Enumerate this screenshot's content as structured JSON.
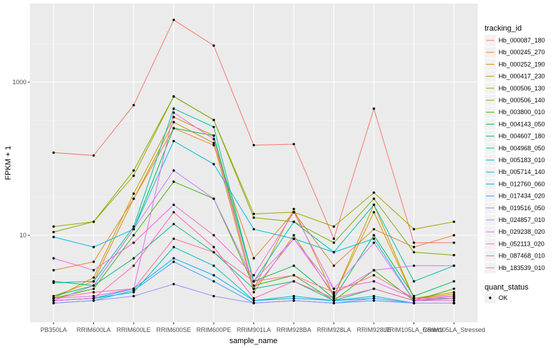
{
  "chart_data": {
    "type": "line",
    "title": "",
    "xlabel": "sample_name",
    "ylabel": "FPKM + 1",
    "log_scale_y": true,
    "y_ticks": [
      10,
      1000
    ],
    "y_tick_labels": [
      "10",
      "1000"
    ],
    "ylim": [
      1,
      7000
    ],
    "grid": true,
    "background": "#EBEBEB",
    "categories": [
      "PB350LA",
      "RRIM600LA",
      "RRIM600LE",
      "RRIM600SE",
      "RRIM600PE",
      "RRIM901LA",
      "RRIM928BA",
      "RRIM928LA",
      "RRIM928LE",
      "RRIM105LA_Control",
      "RRIM105LA_Stressed"
    ],
    "legend": {
      "title": "tracking_id",
      "placement": "right"
    },
    "status_legend": {
      "title": "quant_status",
      "entries": [
        "OK"
      ]
    },
    "series": [
      {
        "name": "Hb_000087_180",
        "color": "#F8766D",
        "values": [
          120,
          110,
          500,
          6500,
          3000,
          150,
          155,
          9,
          450,
          8,
          8
        ]
      },
      {
        "name": "Hb_000245_270",
        "color": "#EA8331",
        "values": [
          3.5,
          4.5,
          30,
          250,
          150,
          5,
          20,
          4,
          12,
          7,
          10
        ]
      },
      {
        "name": "Hb_000252_190",
        "color": "#D89000",
        "values": [
          1.6,
          2.5,
          30,
          300,
          160,
          1.8,
          10,
          1.6,
          20,
          1.5,
          1.8
        ]
      },
      {
        "name": "Hb_000417_230",
        "color": "#C09B00",
        "values": [
          1.5,
          2.8,
          35,
          350,
          200,
          2,
          22,
          1.6,
          25,
          1.5,
          1.7
        ]
      },
      {
        "name": "Hb_000506_130",
        "color": "#A3A500",
        "values": [
          13,
          15,
          60,
          650,
          320,
          19,
          20,
          13,
          36,
          12,
          15
        ]
      },
      {
        "name": "Hb_000506_140",
        "color": "#7CAE00",
        "values": [
          11,
          15,
          70,
          650,
          320,
          17,
          15,
          8,
          30,
          6,
          5.5
        ]
      },
      {
        "name": "Hb_003800_010",
        "color": "#39B600",
        "values": [
          1.5,
          2,
          10,
          50,
          30,
          2.2,
          3,
          1.4,
          3.5,
          1.4,
          2
        ]
      },
      {
        "name": "Hb_004143_050",
        "color": "#00BB4E",
        "values": [
          1.6,
          2.2,
          12,
          250,
          200,
          2.5,
          4,
          1.5,
          10,
          1.6,
          2.5
        ]
      },
      {
        "name": "Hb_004607_180",
        "color": "#00BF7D",
        "values": [
          2.5,
          2.2,
          5,
          14,
          6,
          2,
          2.5,
          1.4,
          2,
          1.4,
          1.5
        ]
      },
      {
        "name": "Hb_004968_050",
        "color": "#00C1A3",
        "values": [
          2.4,
          2.5,
          13,
          450,
          260,
          2.5,
          15,
          6,
          25,
          2.5,
          4
        ]
      },
      {
        "name": "Hb_005183_010",
        "color": "#00BFC4",
        "values": [
          1.4,
          1.5,
          1.8,
          7,
          4,
          1.4,
          1.6,
          1.4,
          1.6,
          1.3,
          1.3
        ]
      },
      {
        "name": "Hb_005714_140",
        "color": "#00BAE0",
        "values": [
          9.5,
          7,
          12,
          170,
          85,
          12,
          9,
          6,
          9,
          1.4,
          1.5
        ]
      },
      {
        "name": "Hb_012760_060",
        "color": "#00B0F6",
        "values": [
          1.4,
          1.5,
          2,
          5,
          3,
          1.4,
          1.5,
          1.4,
          1.5,
          1.3,
          1.3
        ]
      },
      {
        "name": "Hb_017434_020",
        "color": "#35A2FF",
        "values": [
          1.3,
          1.4,
          1.9,
          4.5,
          2.5,
          1.3,
          1.4,
          1.3,
          1.4,
          1.3,
          1.3
        ]
      },
      {
        "name": "Hb_019516_050",
        "color": "#9590FF",
        "values": [
          1.3,
          1.4,
          1.6,
          2.3,
          1.6,
          1.3,
          1.4,
          1.3,
          1.5,
          1.3,
          1.3
        ]
      },
      {
        "name": "Hb_024857_010",
        "color": "#C77CFF",
        "values": [
          1.4,
          2.2,
          12,
          70,
          30,
          2.5,
          9,
          2,
          8,
          1.4,
          1.6
        ]
      },
      {
        "name": "Hb_029238_020",
        "color": "#E76BF3",
        "values": [
          1.5,
          1.6,
          2,
          400,
          180,
          2,
          9,
          1.7,
          3.5,
          4,
          4
        ]
      },
      {
        "name": "Hb_052113_020",
        "color": "#FA62DB",
        "values": [
          5,
          3.5,
          8,
          25,
          10,
          3,
          20,
          2,
          2.5,
          1.5,
          1.6
        ]
      },
      {
        "name": "Hb_087468_010",
        "color": "#FF62BC",
        "values": [
          1.4,
          1.5,
          4,
          20,
          7,
          1.5,
          2.5,
          1.5,
          2,
          1.4,
          1.4
        ]
      },
      {
        "name": "Hb_183539_010",
        "color": "#FF6C91",
        "values": [
          1.5,
          1.8,
          2,
          9,
          6,
          2.5,
          3,
          1.8,
          3,
          1.5,
          1.5
        ]
      }
    ]
  }
}
